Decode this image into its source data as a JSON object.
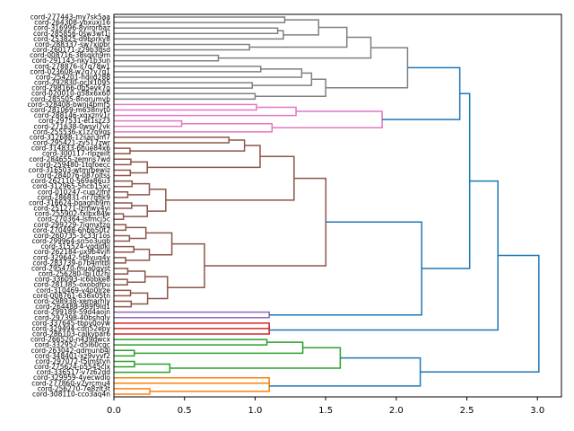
{
  "chart_data": {
    "type": "dendrogram",
    "orientation": "left",
    "title": "",
    "xlabel": "",
    "ylabel": "",
    "xlim": [
      0,
      3.17
    ],
    "xticks": [
      0.0,
      0.5,
      1.0,
      1.5,
      2.0,
      2.5,
      3.0
    ],
    "xtick_labels": [
      "0.0",
      "0.5",
      "1.0",
      "1.5",
      "2.0",
      "2.5",
      "3.0"
    ],
    "grid": false,
    "leaves": [
      "cord-277443-my7sk5aa",
      "cord-264308-ybxuxj16",
      "cord-316996-8yirorbaz",
      "cord-285856-0sw3wt1j",
      "cord-253825-d9borky8",
      "cord-288337-sw7xjpbr",
      "cord-260171-z29b3dsd",
      "cord-008716-38sqkh9m",
      "cord-291143-nky1b3un",
      "cord-278876-il7q78w1",
      "cord-023608-w2q7y7q1",
      "cord-254201-hqijd288",
      "cord-292830-gcjx1095",
      "cord-298166-0q5evk7g",
      "cord-020010-g58x6x60",
      "cord-285505-8norumvb",
      "cord-328408-bwnj4bmf5",
      "cord-281069-m638nyt0",
      "cord-288146-xqxznv1r",
      "cord-297531-et1sz23",
      "cord-271638-0wsyl7vk",
      "cord-255536-x1z2o9gs",
      "cord-312688-12san3m7",
      "cord-295421-zy517zwr",
      "cord-314833-6hue84x6",
      "cord-300117-rlpzeilt",
      "cord-284655-zemns7wd",
      "cord-259480-1tqfoecc",
      "cord-316503-wtmrbewiz",
      "cord-284076-087oltss",
      "cord-262110-569a86u3",
      "cord-312965-5hcb15xc",
      "cord-010247-cuq2lfnf",
      "cord-286831-nr7qfik9",
      "cord-316624-bqaghb9m",
      "cord-251271-lzmwy4yi",
      "cord-255902-fxlbx84w",
      "cord-270364-lsfmcj5c",
      "cord-299229-7iqmxtzq",
      "cord-270498-6hbb50t2",
      "cord-260735-3c33r1os",
      "cord-299964-sn5o3ugb",
      "cord-315524-vgdipkj",
      "cord-262184-ux9b4vjh",
      "cord-329642-5t8yuq4y",
      "cord-283739-p7b4mtbl",
      "cord-295470-mua0qvst",
      "cord-256280-lbj102hj",
      "cord-336093-ic6obke8",
      "cord-281385-oxobdfpu",
      "cord-310469-v4p0lrze",
      "cord-008761-636x05tn",
      "cord-298938-xemarhly",
      "cord-264488-989f9ld1",
      "cord-299189-59d4aojn",
      "cord-297398-40bshqly",
      "cord-337645-tbpy0oyw",
      "cord-329494-cdn52epy",
      "cord-286103-calkypar6",
      "cord-266520-n439dwcx",
      "cord-332952-d5l60cgc",
      "cord-263042-qdmunb4l",
      "cord-348401-xz9vyvf2",
      "cord-297072-t5lmstyn",
      "cord-275624-p5545clx",
      "cord-336517-v7z62dd",
      "cord-329959-4yecwdlo",
      "cord-277860-v2yrcmu4",
      "cord-256270-7e8zlt3t",
      "cord-308110-cco3aq4n"
    ],
    "links": [
      {
        "a": 0,
        "b": 1,
        "h": 1.21,
        "color": "#808080"
      },
      {
        "a": 2,
        "b": 3,
        "h": 1.16,
        "color": "#808080"
      },
      {
        "a": "c1",
        "b": 4,
        "h": 1.2,
        "color": "#808080"
      },
      {
        "a": "c0",
        "b": "c2",
        "h": 1.45,
        "color": "#808080"
      },
      {
        "a": 5,
        "b": 6,
        "h": 0.96,
        "color": "#808080"
      },
      {
        "a": "c3",
        "b": "c4",
        "h": 1.65,
        "color": "#808080"
      },
      {
        "a": 7,
        "b": 8,
        "h": 0.74,
        "color": "#808080"
      },
      {
        "a": "c5",
        "b": "c6",
        "h": 1.82,
        "color": "#808080"
      },
      {
        "a": 9,
        "b": 10,
        "h": 1.04,
        "color": "#808080"
      },
      {
        "a": "c8",
        "b": 11,
        "h": 1.33,
        "color": "#808080"
      },
      {
        "a": 12,
        "b": 13,
        "h": 0.98,
        "color": "#808080"
      },
      {
        "a": "c9",
        "b": "c10",
        "h": 1.4,
        "color": "#808080"
      },
      {
        "a": 14,
        "b": 15,
        "h": 1.0,
        "color": "#808080"
      },
      {
        "a": "c11",
        "b": "c12",
        "h": 1.5,
        "color": "#808080"
      },
      {
        "a": "c7",
        "b": "c13",
        "h": 2.08,
        "color": "#808080"
      },
      {
        "a": 16,
        "b": 17,
        "h": 1.01,
        "color": "#e377c2"
      },
      {
        "a": "c15",
        "b": 18,
        "h": 1.29,
        "color": "#e377c2"
      },
      {
        "a": 19,
        "b": 20,
        "h": 0.48,
        "color": "#e377c2"
      },
      {
        "a": "c17",
        "b": 21,
        "h": 1.12,
        "color": "#e377c2"
      },
      {
        "a": "c16",
        "b": "c18",
        "h": 1.9,
        "color": "#e377c2"
      },
      {
        "a": "c14",
        "b": "c19",
        "h": 2.45,
        "color": "#1f77b4"
      }
    ],
    "cluster_colors": {
      "cluster_1": "#808080",
      "cluster_2": "#e377c2",
      "cluster_3": "#8c564b",
      "cluster_4": "#9467bd",
      "cluster_5": "#d62728",
      "cluster_6": "#2ca02c",
      "cluster_7": "#ff7f0e",
      "above_threshold": "#1f77b4"
    },
    "top_merge_heights": [
      2.45,
      2.52,
      2.18,
      2.0,
      1.9,
      2.72,
      2.17,
      1.97,
      3.01
    ]
  }
}
